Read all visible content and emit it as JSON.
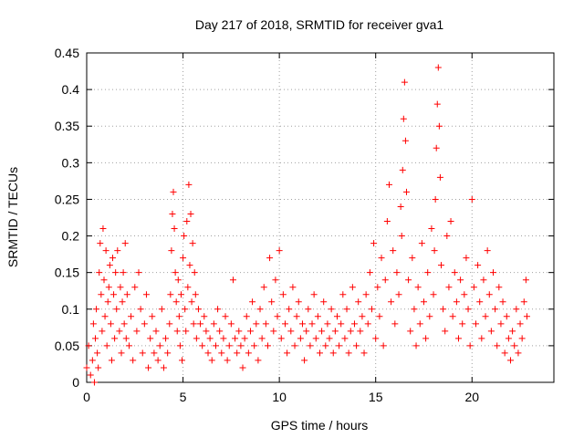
{
  "chart_data": {
    "type": "scatter",
    "title": "Day 217 of 2018, SRMTID for receiver gva1",
    "xlabel": "GPS time / hours",
    "ylabel": "SRMTID / TECUs",
    "xlim": [
      0,
      24.25
    ],
    "ylim": [
      0,
      0.45
    ],
    "x_ticks": [
      0,
      5,
      10,
      15,
      20
    ],
    "x_tick_labels": [
      "0",
      "5",
      "10",
      "15",
      "20"
    ],
    "y_ticks": [
      0,
      0.05,
      0.1,
      0.15,
      0.2,
      0.25,
      0.3,
      0.35,
      0.4,
      0.45
    ],
    "y_tick_labels": [
      "0",
      "0.05",
      "0.1",
      "0.15",
      "0.2",
      "0.25",
      "0.3",
      "0.35",
      "0.4",
      "0.45"
    ],
    "grid": true,
    "marker": "+",
    "marker_color": "#ff0000",
    "series": [
      {
        "name": "gva1",
        "points": [
          [
            0.0,
            0.02
          ],
          [
            0.1,
            0.05
          ],
          [
            0.2,
            0.01
          ],
          [
            0.3,
            0.03
          ],
          [
            0.35,
            0.08
          ],
          [
            0.4,
            0.0
          ],
          [
            0.45,
            0.06
          ],
          [
            0.5,
            0.1
          ],
          [
            0.55,
            0.04
          ],
          [
            0.6,
            0.02
          ],
          [
            0.65,
            0.15
          ],
          [
            0.7,
            0.19
          ],
          [
            0.75,
            0.12
          ],
          [
            0.8,
            0.07
          ],
          [
            0.85,
            0.21
          ],
          [
            0.9,
            0.14
          ],
          [
            0.95,
            0.09
          ],
          [
            1.0,
            0.18
          ],
          [
            1.05,
            0.05
          ],
          [
            1.1,
            0.11
          ],
          [
            1.15,
            0.13
          ],
          [
            1.2,
            0.16
          ],
          [
            1.25,
            0.08
          ],
          [
            1.3,
            0.03
          ],
          [
            1.35,
            0.17
          ],
          [
            1.4,
            0.12
          ],
          [
            1.45,
            0.06
          ],
          [
            1.5,
            0.15
          ],
          [
            1.55,
            0.1
          ],
          [
            1.6,
            0.18
          ],
          [
            1.7,
            0.07
          ],
          [
            1.75,
            0.13
          ],
          [
            1.8,
            0.04
          ],
          [
            1.85,
            0.11
          ],
          [
            1.9,
            0.15
          ],
          [
            1.95,
            0.08
          ],
          [
            2.0,
            0.19
          ],
          [
            2.05,
            0.06
          ],
          [
            2.1,
            0.12
          ],
          [
            2.2,
            0.05
          ],
          [
            2.3,
            0.09
          ],
          [
            2.4,
            0.03
          ],
          [
            2.5,
            0.13
          ],
          [
            2.6,
            0.07
          ],
          [
            2.7,
            0.15
          ],
          [
            2.8,
            0.1
          ],
          [
            2.9,
            0.04
          ],
          [
            3.0,
            0.08
          ],
          [
            3.1,
            0.12
          ],
          [
            3.2,
            0.02
          ],
          [
            3.3,
            0.06
          ],
          [
            3.4,
            0.09
          ],
          [
            3.5,
            0.04
          ],
          [
            3.6,
            0.07
          ],
          [
            3.7,
            0.03
          ],
          [
            3.8,
            0.05
          ],
          [
            3.9,
            0.1
          ],
          [
            4.0,
            0.02
          ],
          [
            4.1,
            0.06
          ],
          [
            4.2,
            0.04
          ],
          [
            4.3,
            0.08
          ],
          [
            4.35,
            0.12
          ],
          [
            4.4,
            0.18
          ],
          [
            4.45,
            0.23
          ],
          [
            4.5,
            0.26
          ],
          [
            4.55,
            0.21
          ],
          [
            4.6,
            0.15
          ],
          [
            4.65,
            0.11
          ],
          [
            4.7,
            0.07
          ],
          [
            4.75,
            0.14
          ],
          [
            4.8,
            0.09
          ],
          [
            4.85,
            0.05
          ],
          [
            4.9,
            0.12
          ],
          [
            4.95,
            0.03
          ],
          [
            5.0,
            0.17
          ],
          [
            5.05,
            0.2
          ],
          [
            5.1,
            0.1
          ],
          [
            5.15,
            0.07
          ],
          [
            5.2,
            0.22
          ],
          [
            5.25,
            0.13
          ],
          [
            5.3,
            0.27
          ],
          [
            5.35,
            0.16
          ],
          [
            5.4,
            0.23
          ],
          [
            5.45,
            0.11
          ],
          [
            5.5,
            0.19
          ],
          [
            5.55,
            0.08
          ],
          [
            5.6,
            0.15
          ],
          [
            5.65,
            0.12
          ],
          [
            5.7,
            0.06
          ],
          [
            5.8,
            0.1
          ],
          [
            5.9,
            0.08
          ],
          [
            6.0,
            0.05
          ],
          [
            6.1,
            0.09
          ],
          [
            6.2,
            0.07
          ],
          [
            6.3,
            0.04
          ],
          [
            6.4,
            0.06
          ],
          [
            6.5,
            0.03
          ],
          [
            6.6,
            0.08
          ],
          [
            6.7,
            0.05
          ],
          [
            6.8,
            0.1
          ],
          [
            6.9,
            0.07
          ],
          [
            7.0,
            0.04
          ],
          [
            7.1,
            0.06
          ],
          [
            7.2,
            0.09
          ],
          [
            7.3,
            0.03
          ],
          [
            7.4,
            0.05
          ],
          [
            7.5,
            0.08
          ],
          [
            7.6,
            0.14
          ],
          [
            7.7,
            0.06
          ],
          [
            7.8,
            0.04
          ],
          [
            7.9,
            0.07
          ],
          [
            8.0,
            0.05
          ],
          [
            8.1,
            0.02
          ],
          [
            8.2,
            0.06
          ],
          [
            8.3,
            0.09
          ],
          [
            8.4,
            0.04
          ],
          [
            8.5,
            0.07
          ],
          [
            8.6,
            0.11
          ],
          [
            8.7,
            0.05
          ],
          [
            8.8,
            0.08
          ],
          [
            8.9,
            0.03
          ],
          [
            9.0,
            0.1
          ],
          [
            9.1,
            0.06
          ],
          [
            9.2,
            0.13
          ],
          [
            9.3,
            0.08
          ],
          [
            9.4,
            0.05
          ],
          [
            9.5,
            0.17
          ],
          [
            9.6,
            0.11
          ],
          [
            9.7,
            0.07
          ],
          [
            9.8,
            0.14
          ],
          [
            9.9,
            0.09
          ],
          [
            10.0,
            0.18
          ],
          [
            10.1,
            0.06
          ],
          [
            10.2,
            0.12
          ],
          [
            10.3,
            0.08
          ],
          [
            10.4,
            0.04
          ],
          [
            10.5,
            0.1
          ],
          [
            10.6,
            0.07
          ],
          [
            10.7,
            0.13
          ],
          [
            10.8,
            0.05
          ],
          [
            10.9,
            0.09
          ],
          [
            11.0,
            0.11
          ],
          [
            11.1,
            0.06
          ],
          [
            11.2,
            0.08
          ],
          [
            11.3,
            0.03
          ],
          [
            11.4,
            0.07
          ],
          [
            11.5,
            0.1
          ],
          [
            11.6,
            0.05
          ],
          [
            11.7,
            0.08
          ],
          [
            11.8,
            0.12
          ],
          [
            11.9,
            0.06
          ],
          [
            12.0,
            0.09
          ],
          [
            12.1,
            0.04
          ],
          [
            12.2,
            0.07
          ],
          [
            12.3,
            0.11
          ],
          [
            12.4,
            0.05
          ],
          [
            12.5,
            0.08
          ],
          [
            12.6,
            0.06
          ],
          [
            12.7,
            0.1
          ],
          [
            12.8,
            0.04
          ],
          [
            12.9,
            0.07
          ],
          [
            13.0,
            0.09
          ],
          [
            13.1,
            0.05
          ],
          [
            13.2,
            0.08
          ],
          [
            13.3,
            0.12
          ],
          [
            13.4,
            0.06
          ],
          [
            13.5,
            0.1
          ],
          [
            13.6,
            0.04
          ],
          [
            13.7,
            0.07
          ],
          [
            13.8,
            0.13
          ],
          [
            13.9,
            0.08
          ],
          [
            14.0,
            0.05
          ],
          [
            14.1,
            0.11
          ],
          [
            14.2,
            0.07
          ],
          [
            14.3,
            0.09
          ],
          [
            14.4,
            0.04
          ],
          [
            14.5,
            0.12
          ],
          [
            14.6,
            0.08
          ],
          [
            14.7,
            0.15
          ],
          [
            14.8,
            0.1
          ],
          [
            14.9,
            0.19
          ],
          [
            15.0,
            0.06
          ],
          [
            15.1,
            0.13
          ],
          [
            15.2,
            0.09
          ],
          [
            15.3,
            0.17
          ],
          [
            15.4,
            0.05
          ],
          [
            15.5,
            0.14
          ],
          [
            15.6,
            0.22
          ],
          [
            15.7,
            0.27
          ],
          [
            15.8,
            0.11
          ],
          [
            15.9,
            0.18
          ],
          [
            16.0,
            0.08
          ],
          [
            16.1,
            0.15
          ],
          [
            16.2,
            0.12
          ],
          [
            16.3,
            0.24
          ],
          [
            16.35,
            0.2
          ],
          [
            16.4,
            0.29
          ],
          [
            16.45,
            0.36
          ],
          [
            16.5,
            0.41
          ],
          [
            16.55,
            0.33
          ],
          [
            16.6,
            0.26
          ],
          [
            16.7,
            0.14
          ],
          [
            16.8,
            0.07
          ],
          [
            16.9,
            0.17
          ],
          [
            17.0,
            0.1
          ],
          [
            17.1,
            0.05
          ],
          [
            17.2,
            0.13
          ],
          [
            17.3,
            0.08
          ],
          [
            17.4,
            0.19
          ],
          [
            17.5,
            0.11
          ],
          [
            17.6,
            0.06
          ],
          [
            17.7,
            0.15
          ],
          [
            17.8,
            0.09
          ],
          [
            17.9,
            0.21
          ],
          [
            18.0,
            0.12
          ],
          [
            18.05,
            0.18
          ],
          [
            18.1,
            0.25
          ],
          [
            18.15,
            0.32
          ],
          [
            18.2,
            0.38
          ],
          [
            18.25,
            0.43
          ],
          [
            18.3,
            0.35
          ],
          [
            18.35,
            0.28
          ],
          [
            18.4,
            0.16
          ],
          [
            18.5,
            0.1
          ],
          [
            18.6,
            0.07
          ],
          [
            18.7,
            0.2
          ],
          [
            18.8,
            0.13
          ],
          [
            18.9,
            0.22
          ],
          [
            19.0,
            0.09
          ],
          [
            19.1,
            0.15
          ],
          [
            19.2,
            0.11
          ],
          [
            19.3,
            0.06
          ],
          [
            19.4,
            0.14
          ],
          [
            19.5,
            0.08
          ],
          [
            19.6,
            0.12
          ],
          [
            19.7,
            0.17
          ],
          [
            19.8,
            0.1
          ],
          [
            19.9,
            0.05
          ],
          [
            20.0,
            0.25
          ],
          [
            20.1,
            0.13
          ],
          [
            20.2,
            0.08
          ],
          [
            20.3,
            0.16
          ],
          [
            20.4,
            0.11
          ],
          [
            20.5,
            0.06
          ],
          [
            20.6,
            0.14
          ],
          [
            20.7,
            0.09
          ],
          [
            20.8,
            0.18
          ],
          [
            20.9,
            0.12
          ],
          [
            21.0,
            0.07
          ],
          [
            21.1,
            0.15
          ],
          [
            21.2,
            0.1
          ],
          [
            21.3,
            0.05
          ],
          [
            21.4,
            0.13
          ],
          [
            21.5,
            0.08
          ],
          [
            21.6,
            0.11
          ],
          [
            21.7,
            0.04
          ],
          [
            21.8,
            0.09
          ],
          [
            21.9,
            0.06
          ],
          [
            22.0,
            0.03
          ],
          [
            22.1,
            0.07
          ],
          [
            22.2,
            0.05
          ],
          [
            22.3,
            0.1
          ],
          [
            22.4,
            0.04
          ],
          [
            22.5,
            0.08
          ],
          [
            22.6,
            0.06
          ],
          [
            22.7,
            0.11
          ],
          [
            22.8,
            0.14
          ],
          [
            22.85,
            0.09
          ]
        ]
      }
    ]
  }
}
